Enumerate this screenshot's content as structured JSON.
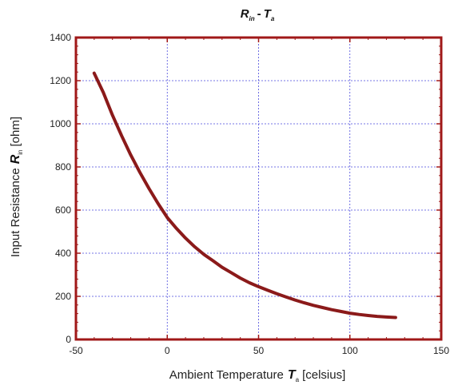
{
  "chart_data": {
    "type": "line",
    "title": {
      "a_var": "R",
      "a_sub": "in",
      "sep": "-",
      "b_var": "T",
      "b_sub": "a"
    },
    "xlabel": {
      "text": "Ambient Temperature",
      "var": "T",
      "sub": "a",
      "unit": "[celsius]"
    },
    "ylabel": {
      "text": "Input Resistance",
      "var": "R",
      "sub": "in",
      "unit": "[ohm]"
    },
    "xlim": [
      -50,
      150
    ],
    "ylim": [
      0,
      1400
    ],
    "xticks": [
      -50,
      0,
      50,
      100,
      150
    ],
    "yticks": [
      0,
      200,
      400,
      600,
      800,
      1000,
      1200,
      1400
    ],
    "grid": true,
    "colors": {
      "frame": "#a01818",
      "line": "#8b1a1a",
      "grid": "#4a4adc"
    },
    "series": [
      {
        "x": [
          -40,
          -35,
          -30,
          -25,
          -20,
          -15,
          -10,
          -5,
          0,
          5,
          10,
          15,
          20,
          25,
          30,
          35,
          40,
          45,
          50,
          55,
          60,
          65,
          70,
          75,
          80,
          85,
          90,
          95,
          100,
          105,
          110,
          115,
          120,
          125
        ],
        "y": [
          1235,
          1145,
          1040,
          945,
          855,
          775,
          700,
          630,
          565,
          515,
          470,
          430,
          395,
          365,
          335,
          310,
          285,
          263,
          245,
          228,
          212,
          197,
          183,
          170,
          158,
          148,
          138,
          130,
          122,
          116,
          111,
          107,
          104,
          102
        ]
      }
    ]
  }
}
